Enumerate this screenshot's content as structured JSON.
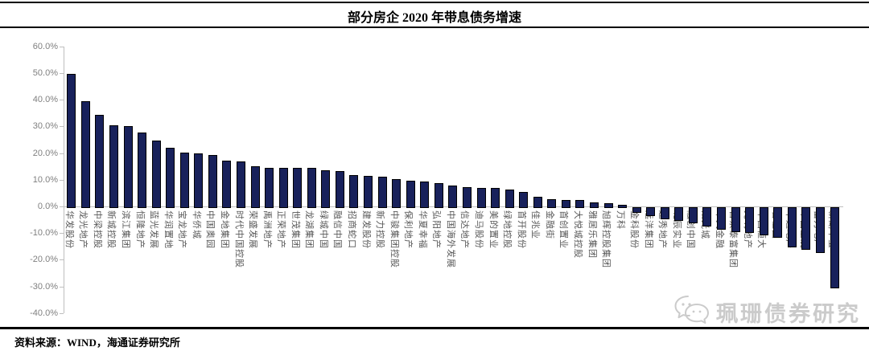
{
  "header": {
    "title": "部分房企 2020 年带息债务增速"
  },
  "chart_data": {
    "type": "bar",
    "title": "部分房企 2020 年带息债务增速",
    "xlabel": "",
    "ylabel": "",
    "unit": "%",
    "ylim": [
      -40,
      60
    ],
    "grid": false,
    "legend": "none",
    "y_ticks": [
      "60.0%",
      "50.0%",
      "40.0%",
      "30.0%",
      "20.0%",
      "10.0%",
      "0.0%",
      "-10.0%",
      "-20.0%",
      "-30.0%",
      "-40.0%"
    ],
    "y_tick_values": [
      60,
      50,
      40,
      30,
      20,
      10,
      0,
      -10,
      -20,
      -30,
      -40
    ],
    "categories": [
      "华发股份",
      "龙光地产",
      "中梁控股",
      "新城控股",
      "滨江集团",
      "恒隆地产",
      "蓝光发展",
      "华润置地",
      "宝龙地产",
      "华侨城",
      "中国奥园",
      "金地集团",
      "时代中国控股",
      "荣盛发展",
      "禹洲地产",
      "正荣地产",
      "世茂集团",
      "龙湖集团",
      "绿城中国",
      "融信中国",
      "招商蛇口",
      "建发股份",
      "新力控股",
      "中骏集团控股",
      "保利地产",
      "华夏幸福",
      "弘阳地产",
      "中国海外发展",
      "信达地产",
      "迪马股份",
      "美的置业",
      "绿地控股",
      "首开股份",
      "佳兆业",
      "金融街",
      "首创置业",
      "大悦城控股",
      "雅居乐集团",
      "旭辉控股集团",
      "万科",
      "金科股份",
      "远洋集团",
      "越秀地产",
      "北辰实业",
      "融创中国",
      "阳光城",
      "中天金融",
      "合景泰富集团",
      "光明地产",
      "中国恒大",
      "碧桂园",
      "华远地产",
      "中国金茂",
      "富力地产",
      "新湖中宝"
    ],
    "values": [
      49.8,
      39.6,
      34.4,
      30.5,
      30.2,
      27.6,
      24.7,
      22.0,
      20.2,
      19.9,
      19.2,
      17.3,
      17.0,
      15.1,
      14.6,
      14.5,
      14.4,
      14.4,
      13.6,
      13.4,
      11.9,
      11.4,
      11.2,
      10.3,
      9.7,
      9.3,
      8.7,
      7.9,
      7.3,
      7.0,
      7.0,
      6.4,
      5.5,
      3.6,
      2.8,
      2.5,
      2.3,
      1.5,
      1.1,
      0.6,
      -1.6,
      -2.7,
      -3.9,
      -4.6,
      -5.4,
      -6.6,
      -7.9,
      -8.6,
      -8.9,
      -9.9,
      -10.8,
      -14.5,
      -15.5,
      -16.6,
      -29.8
    ],
    "bar_color": "#18215b",
    "bar_border_color": "#000000",
    "axis_color": "#bfbfbf",
    "y_tick_label_color": "#7f7f7f",
    "category_label_color": "#595959"
  },
  "watermark": {
    "text": "珮珊债券研究",
    "icon": "wechat-chat-bubbles-icon"
  },
  "footer": {
    "source_label": "资料来源：WIND，海通证券研究所"
  }
}
